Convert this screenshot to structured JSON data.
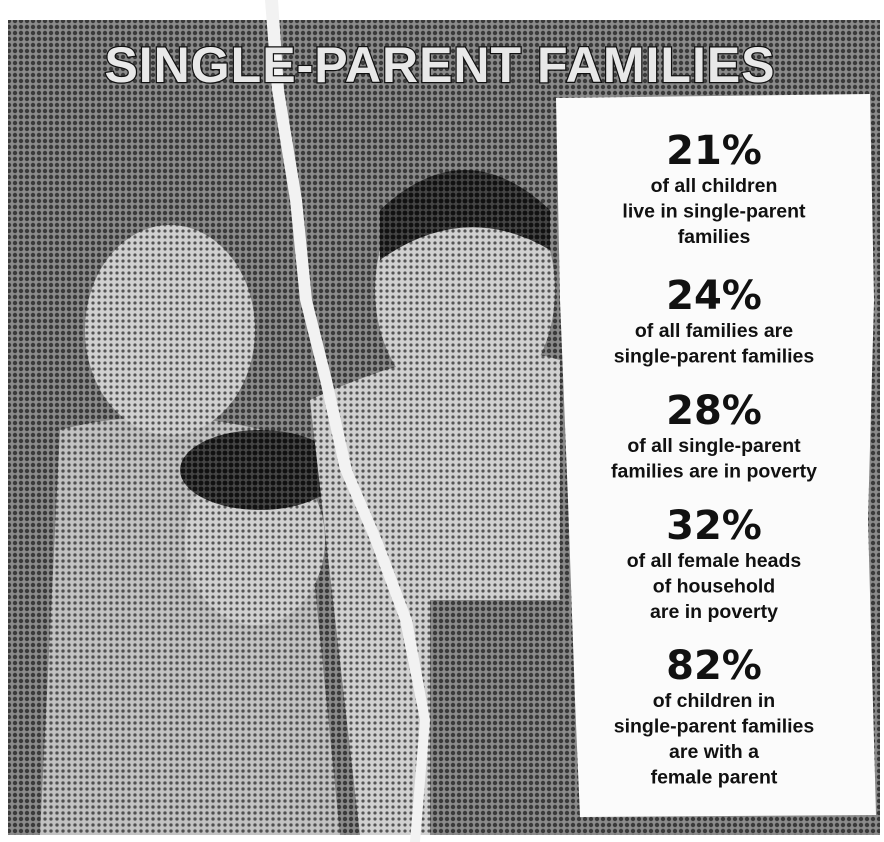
{
  "header": {
    "title": "SINGLE-PARENT FAMILIES"
  },
  "stats": [
    {
      "figure": "21%",
      "lines": [
        "of all children",
        "live in single-parent",
        "families"
      ]
    },
    {
      "figure": "24%",
      "lines": [
        "of all families are",
        "single-parent families"
      ]
    },
    {
      "figure": "28%",
      "lines": [
        "of all single-parent",
        "families are in poverty"
      ]
    },
    {
      "figure": "32%",
      "lines": [
        "of all female heads",
        "of household",
        "are in poverty"
      ]
    },
    {
      "figure": "82%",
      "lines": [
        "of children in",
        "single-parent families",
        "are with a",
        "female parent"
      ]
    }
  ]
}
